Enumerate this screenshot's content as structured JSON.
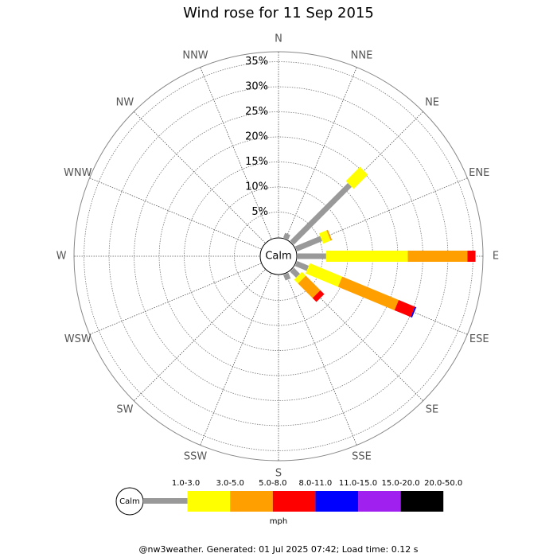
{
  "chart_data": {
    "type": "windrose",
    "title": "Wind rose for 11 Sep 2015",
    "center_label": "Calm",
    "directions": [
      "N",
      "NNE",
      "NE",
      "ENE",
      "E",
      "ESE",
      "SE",
      "SSE",
      "S",
      "SSW",
      "SW",
      "WSW",
      "W",
      "WNW",
      "NW",
      "NNW"
    ],
    "rlim": [
      0,
      37
    ],
    "rticks": [
      {
        "value": 5,
        "label": "5%"
      },
      {
        "value": 10,
        "label": "10%"
      },
      {
        "value": 15,
        "label": "15%"
      },
      {
        "value": 20,
        "label": "20%"
      },
      {
        "value": 25,
        "label": "25%"
      },
      {
        "value": 30,
        "label": "30%"
      },
      {
        "value": 35,
        "label": "35%"
      }
    ],
    "series": [
      {
        "name": "1.0-3.0",
        "color": "#999999",
        "values": [
          0,
          1.0,
          16.3,
          5.4,
          5.7,
          2.5,
          1.7,
          1.2,
          0,
          0,
          0,
          0,
          0,
          0,
          0,
          0
        ]
      },
      {
        "name": "3.0-5.0",
        "color": "#ffff00",
        "values": [
          0,
          0,
          4.0,
          1.6,
          16.3,
          7.0,
          1.1,
          0,
          0,
          0,
          0,
          0,
          0,
          0,
          0,
          0
        ]
      },
      {
        "name": "5.0-8.0",
        "color": "#ffa000",
        "values": [
          0,
          0,
          0,
          0.3,
          11.9,
          12.2,
          4.1,
          0,
          0,
          0,
          0,
          0,
          0,
          0,
          0,
          0
        ]
      },
      {
        "name": "8.0-11.0",
        "color": "#ff0000",
        "values": [
          0,
          0,
          0,
          0,
          1.6,
          3.5,
          1.1,
          0,
          0,
          0,
          0,
          0,
          0,
          0,
          0,
          0
        ]
      },
      {
        "name": "11.0-15.0",
        "color": "#0000ff",
        "values": [
          0,
          0,
          0,
          0,
          0,
          0.3,
          0,
          0,
          0,
          0,
          0,
          0,
          0,
          0,
          0,
          0
        ]
      },
      {
        "name": "15.0-20.0",
        "color": "#a020f0",
        "values": [
          0,
          0,
          0,
          0,
          0,
          0,
          0,
          0,
          0,
          0,
          0,
          0,
          0,
          0,
          0,
          0
        ]
      },
      {
        "name": "20.0-50.0",
        "color": "#000000",
        "values": [
          0,
          0,
          0,
          0,
          0,
          0,
          0,
          0,
          0,
          0,
          0,
          0,
          0,
          0,
          0,
          0
        ]
      }
    ],
    "legend_unit": "mph",
    "footer": "@nw3weather. Generated: 01 Jul 2025 07:42; Load time: 0.12 s"
  }
}
